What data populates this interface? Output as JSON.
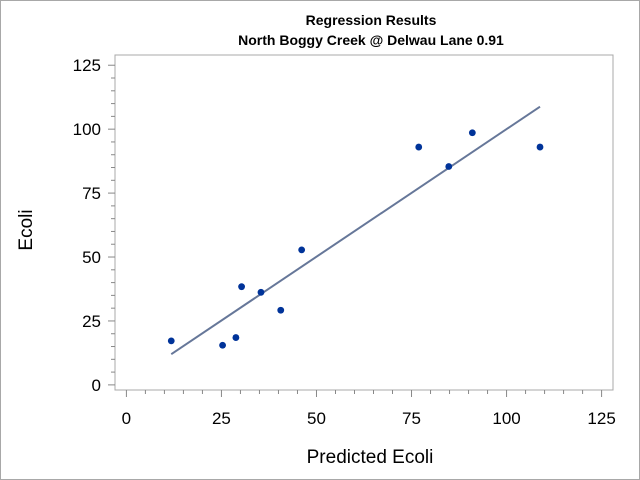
{
  "chart_data": {
    "type": "scatter",
    "title": "Regression Results",
    "subtitle": "North Boggy Creek @ Delwau Lane 0.91",
    "xlabel": "Predicted Ecoli",
    "ylabel": "Ecoli",
    "xlim": [
      -3,
      128
    ],
    "ylim": [
      -2,
      129
    ],
    "xticks": [
      0,
      25,
      50,
      75,
      100,
      125
    ],
    "yticks": [
      0,
      25,
      50,
      75,
      100,
      125
    ],
    "x_minor_step": 5,
    "y_minor_step": 5,
    "grid": false,
    "points": [
      {
        "x": 11.8,
        "y": 17.2
      },
      {
        "x": 25.3,
        "y": 15.5
      },
      {
        "x": 28.8,
        "y": 18.5
      },
      {
        "x": 30.3,
        "y": 38.4
      },
      {
        "x": 35.4,
        "y": 36.2
      },
      {
        "x": 40.6,
        "y": 29.2
      },
      {
        "x": 46.1,
        "y": 52.8
      },
      {
        "x": 76.9,
        "y": 93.0
      },
      {
        "x": 84.8,
        "y": 85.4
      },
      {
        "x": 91.0,
        "y": 98.6
      },
      {
        "x": 108.8,
        "y": 93.0
      }
    ],
    "fit_line": {
      "x": [
        11.8,
        108.8
      ],
      "y": [
        12.0,
        108.8
      ]
    },
    "colors": {
      "points": "#003399",
      "line": "#667799",
      "frame": "#a8a8a8",
      "axis": "#888888"
    }
  }
}
